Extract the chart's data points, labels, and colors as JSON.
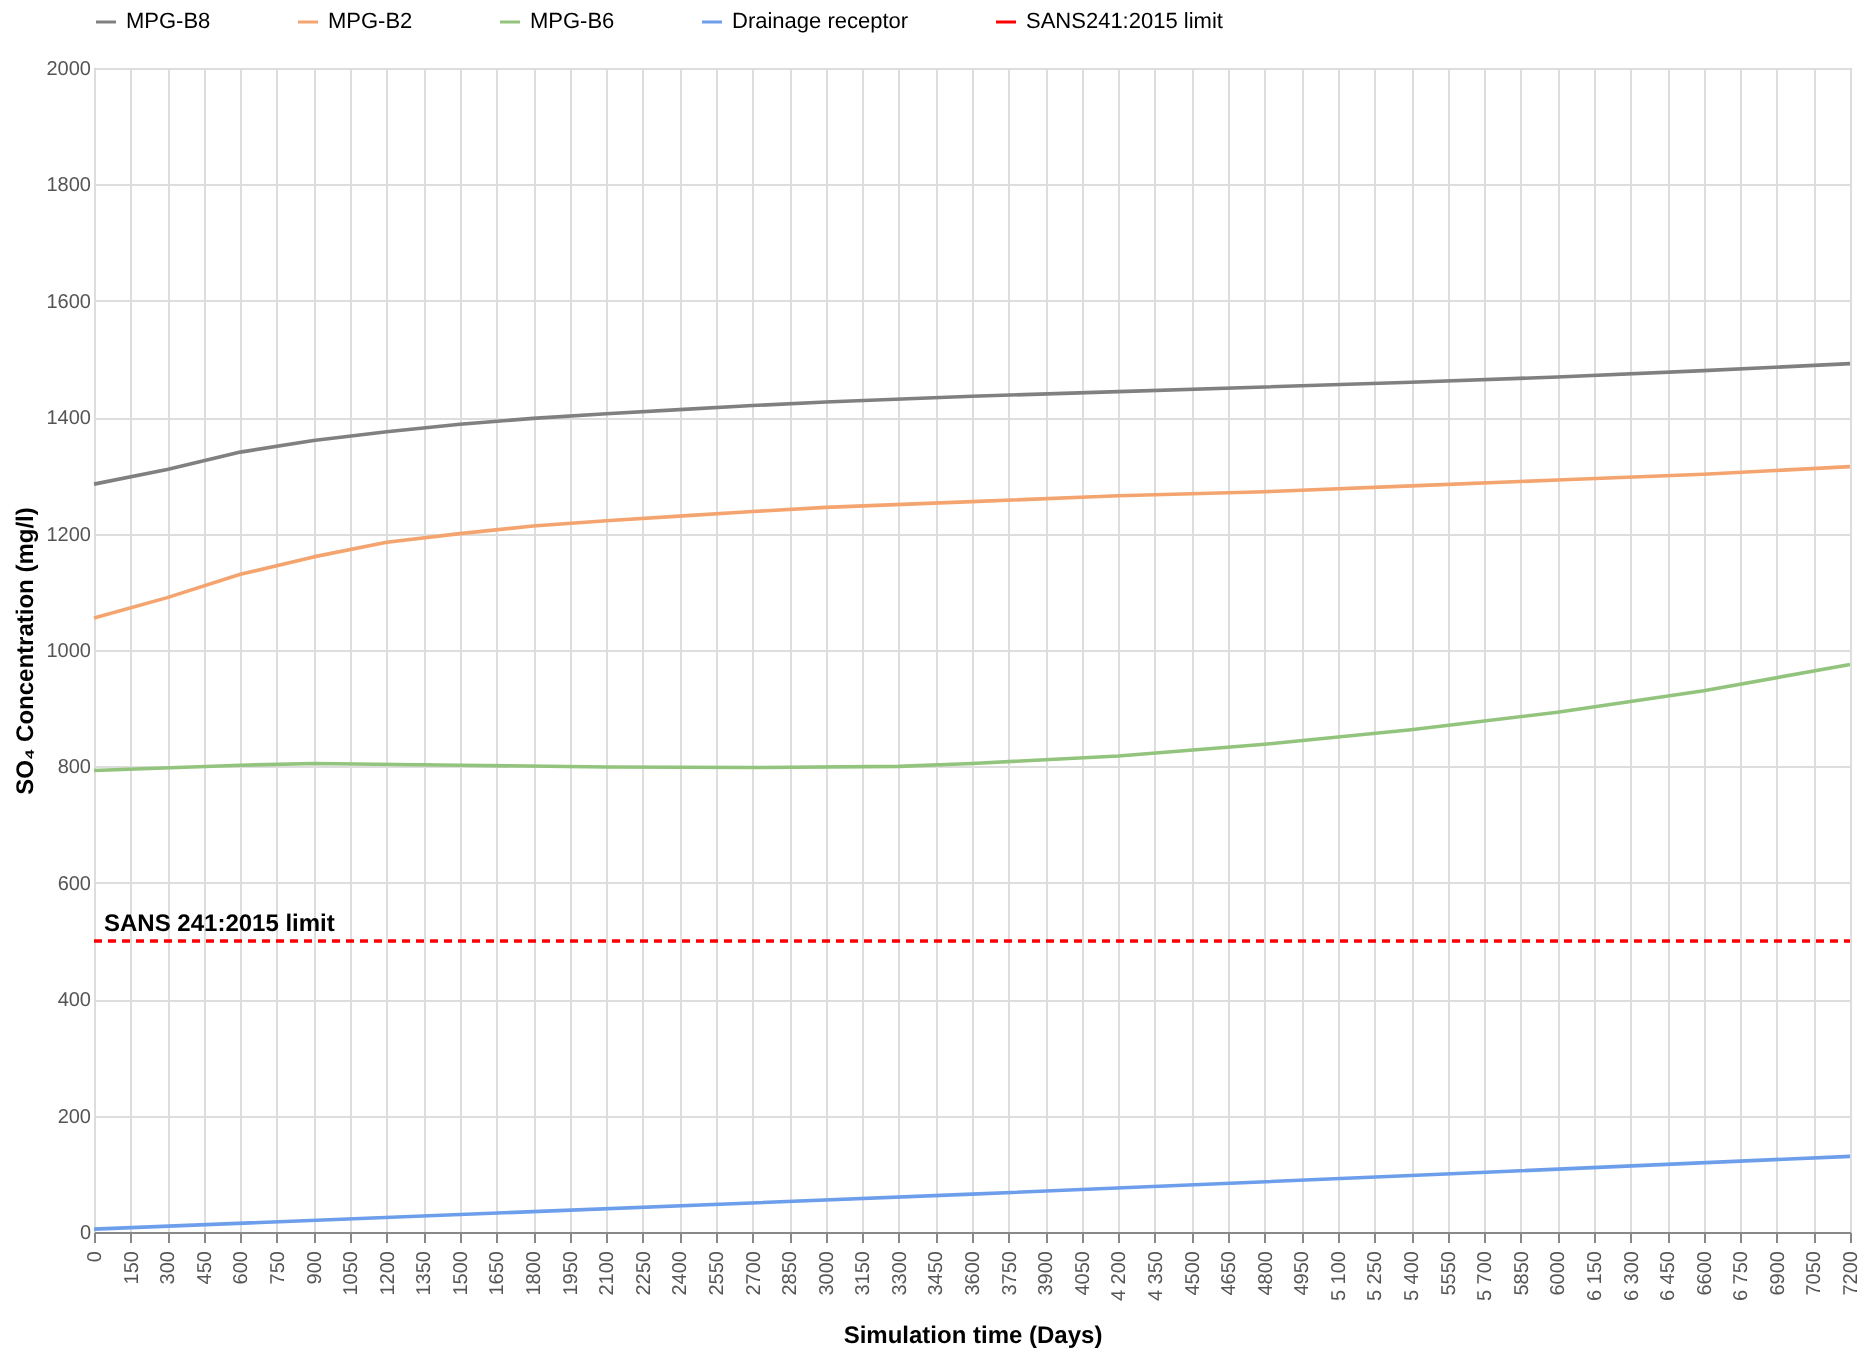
{
  "chart_data": {
    "type": "line",
    "xlabel": "Simulation time (Days)",
    "ylabel": "SO₄ Concentration (mg/l)",
    "xlim": [
      0,
      7200
    ],
    "ylim": [
      0,
      2000
    ],
    "yticks": [
      0,
      200,
      400,
      600,
      800,
      1000,
      1200,
      1400,
      1600,
      1800,
      2000
    ],
    "xticks": [
      0,
      150,
      300,
      450,
      600,
      750,
      900,
      1050,
      1200,
      1350,
      1500,
      1650,
      1800,
      1950,
      2100,
      2250,
      2400,
      2550,
      2700,
      2850,
      3000,
      3150,
      3300,
      3450,
      3600,
      3750,
      3900,
      4050,
      {
        "value": 4200,
        "label": "4 200"
      },
      {
        "value": 4350,
        "label": "4 350"
      },
      4500,
      4650,
      4800,
      4950,
      {
        "value": 5100,
        "label": "5 100"
      },
      {
        "value": 5250,
        "label": "5 250"
      },
      {
        "value": 5400,
        "label": "5 400"
      },
      5550,
      {
        "value": 5700,
        "label": "5 700"
      },
      5850,
      6000,
      {
        "value": 6150,
        "label": "6 150"
      },
      {
        "value": 6300,
        "label": "6 300"
      },
      {
        "value": 6450,
        "label": "6 450"
      },
      6600,
      {
        "value": 6750,
        "label": "6 750"
      },
      6900,
      7050,
      7200
    ],
    "grid": true,
    "legend": "top",
    "line_style": "solid",
    "marker": "none",
    "series": [
      {
        "name": "MPG-B8",
        "color": "#808080",
        "x": [
          0,
          300,
          600,
          900,
          1200,
          1500,
          1800,
          2100,
          2400,
          2700,
          3000,
          3600,
          4200,
          4800,
          5400,
          6000,
          6600,
          7200
        ],
        "values": [
          1285,
          1310,
          1340,
          1360,
          1375,
          1388,
          1398,
          1406,
          1413,
          1420,
          1426,
          1436,
          1444,
          1452,
          1460,
          1469,
          1480,
          1492
        ]
      },
      {
        "name": "MPG-B2",
        "color": "#f4a46f",
        "x": [
          0,
          300,
          600,
          900,
          1200,
          1500,
          1800,
          2100,
          2400,
          2700,
          3000,
          3600,
          4200,
          4800,
          5400,
          6000,
          6600,
          7200
        ],
        "values": [
          1055,
          1090,
          1130,
          1160,
          1185,
          1200,
          1213,
          1222,
          1230,
          1238,
          1245,
          1255,
          1265,
          1272,
          1282,
          1292,
          1302,
          1315
        ]
      },
      {
        "name": "MPG-B6",
        "color": "#93c47d",
        "x": [
          0,
          600,
          900,
          1500,
          2100,
          2700,
          3300,
          3600,
          4200,
          4800,
          5400,
          6000,
          6600,
          7200
        ],
        "values": [
          793,
          802,
          805,
          802,
          799,
          798,
          800,
          805,
          818,
          838,
          863,
          893,
          930,
          975
        ]
      },
      {
        "name": "Drainage receptor",
        "color": "#6d9eeb",
        "x": [
          0,
          1800,
          3600,
          5400,
          7200
        ],
        "values": [
          5,
          35,
          65,
          97,
          130
        ]
      },
      {
        "name": "SANS241:2015 limit",
        "color": "#ff0000",
        "line_style": "dashed",
        "x": [
          0,
          7200
        ],
        "values": [
          500,
          500
        ]
      }
    ],
    "annotations": [
      {
        "text": "SANS 241:2015  limit",
        "x": 0,
        "y": 500
      }
    ]
  }
}
